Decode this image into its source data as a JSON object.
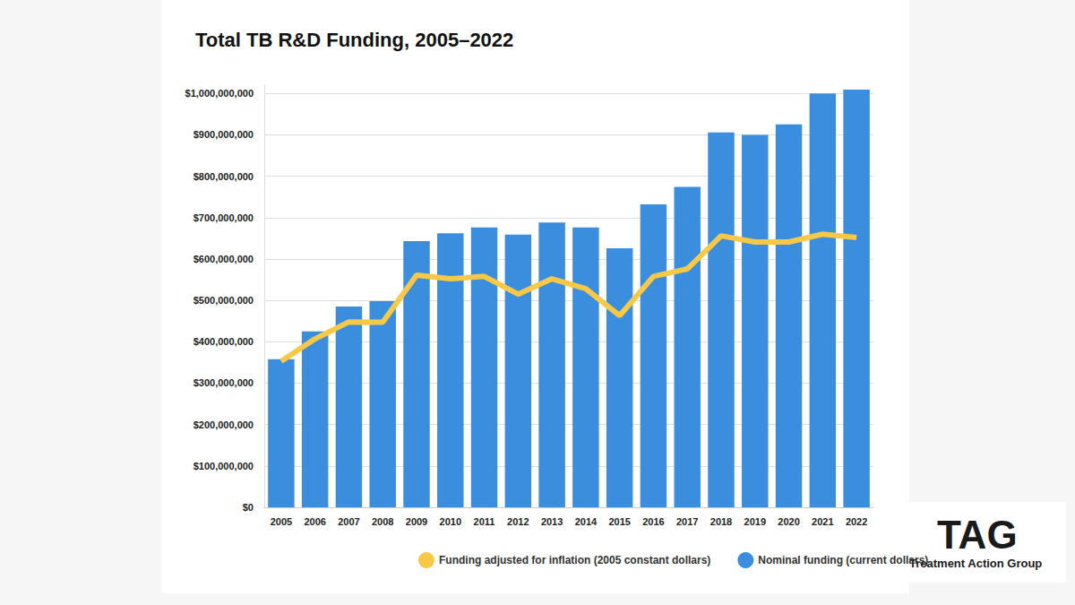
{
  "chart_data": {
    "type": "bar",
    "title": "Total TB R&D Funding, 2005–2022",
    "categories": [
      "2005",
      "2006",
      "2007",
      "2008",
      "2009",
      "2010",
      "2011",
      "2012",
      "2013",
      "2014",
      "2015",
      "2016",
      "2017",
      "2018",
      "2019",
      "2020",
      "2021",
      "2022"
    ],
    "series": [
      {
        "name": "Funding adjusted for inflation (2005 constant dollars)",
        "type": "line",
        "color": "#f9c846",
        "values": [
          353000000,
          407000000,
          448000000,
          447000000,
          561000000,
          552000000,
          558000000,
          515000000,
          552000000,
          528000000,
          463000000,
          558000000,
          576000000,
          656000000,
          641000000,
          641000000,
          660000000,
          652000000
        ]
      },
      {
        "name": "Nominal funding (current dollars)",
        "type": "bar",
        "color": "#3b8ede",
        "values": [
          358000000,
          425000000,
          485000000,
          498000000,
          643000000,
          662000000,
          676000000,
          659000000,
          688000000,
          676000000,
          626000000,
          732000000,
          774000000,
          906000000,
          900000000,
          925000000,
          1000000000,
          1009000000
        ]
      }
    ],
    "ylim": [
      0,
      1020000000
    ],
    "yticks": [
      {
        "value": 0,
        "label": "$0"
      },
      {
        "value": 100000000,
        "label": "$100,000,000"
      },
      {
        "value": 200000000,
        "label": "$200,000,000"
      },
      {
        "value": 300000000,
        "label": "$300,000,000"
      },
      {
        "value": 400000000,
        "label": "$400,000,000"
      },
      {
        "value": 500000000,
        "label": "$500,000,000"
      },
      {
        "value": 600000000,
        "label": "$600,000,000"
      },
      {
        "value": 700000000,
        "label": "$700,000,000"
      },
      {
        "value": 800000000,
        "label": "$800,000,000"
      },
      {
        "value": 900000000,
        "label": "$900,000,000"
      },
      {
        "value": 1000000000,
        "label": "$1,000,000,000"
      }
    ],
    "grid": true,
    "legend": "bottom",
    "annotations": [
      "TAG",
      "Treatment Action Group"
    ]
  }
}
